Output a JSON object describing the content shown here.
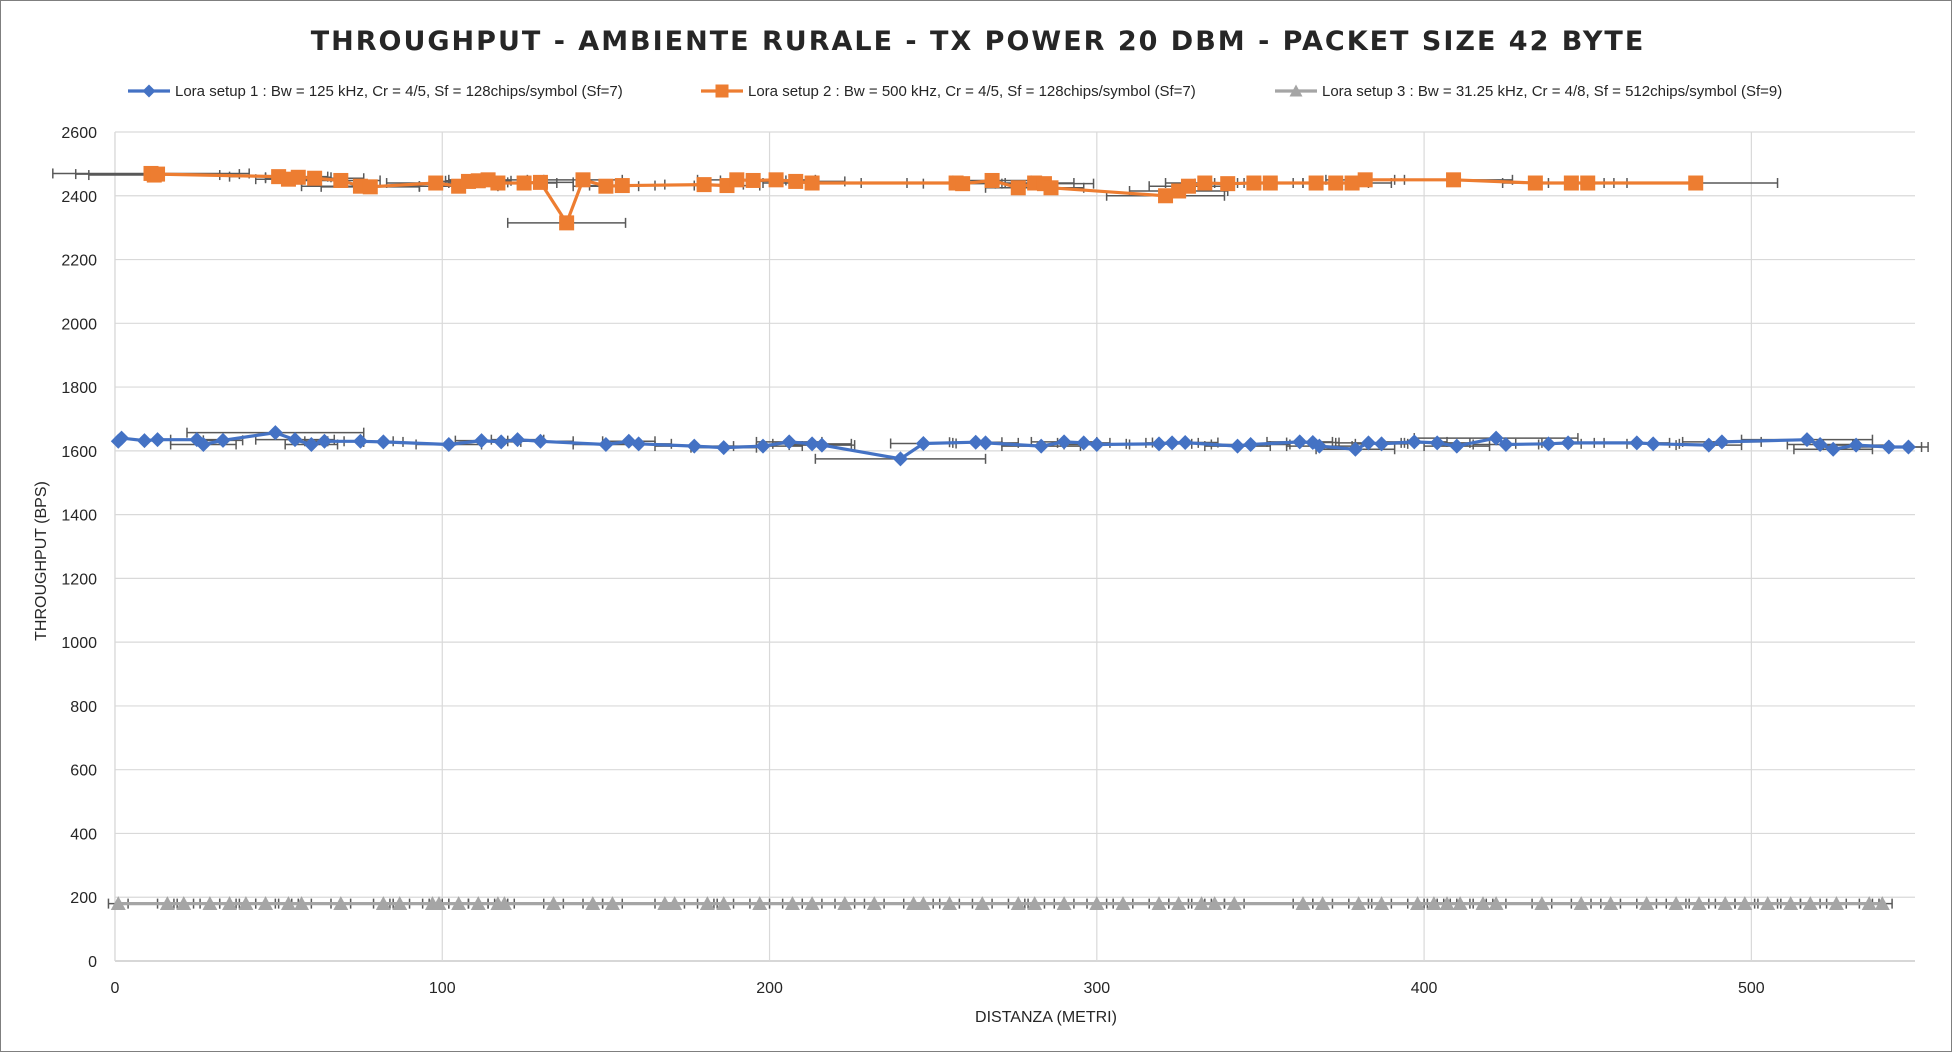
{
  "chart_data": {
    "type": "line",
    "title": "THROUGHPUT  - AMBIENTE  RURALE  - TX  POWER  20  DBM  - PACKET  SIZE  42  BYTE",
    "xlabel": "DISTANZA (METRI)",
    "ylabel": "THROUGHPUT (BPS)",
    "xlim": [
      0,
      550
    ],
    "ylim": [
      0,
      2600
    ],
    "xticks": [
      "0",
      "100",
      "200",
      "300",
      "400",
      "500"
    ],
    "yticks": [
      "0",
      "200",
      "400",
      "600",
      "800",
      "1000",
      "1200",
      "1400",
      "1600",
      "1800",
      "2000",
      "2200",
      "2400",
      "2600"
    ],
    "grid": "vertical-and-horizontal",
    "legend_position": "top",
    "error_bars": "horizontal",
    "series": [
      {
        "name": "Lora setup 1 : Bw = 125 kHz, Cr = 4/5, Sf = 128chips/symbol (Sf=7)",
        "color": "#4472C4",
        "marker": "diamond",
        "points": [
          {
            "x": 1,
            "y": 1630,
            "err": 0
          },
          {
            "x": 2,
            "y": 1640,
            "err": 0
          },
          {
            "x": 9,
            "y": 1632,
            "err": 0
          },
          {
            "x": 13,
            "y": 1635,
            "err": 0
          },
          {
            "x": 25,
            "y": 1635,
            "err": 8
          },
          {
            "x": 27,
            "y": 1620,
            "err": 10
          },
          {
            "x": 33,
            "y": 1633,
            "err": 6
          },
          {
            "x": 49,
            "y": 1657,
            "err": 27
          },
          {
            "x": 55,
            "y": 1635,
            "err": 12
          },
          {
            "x": 60,
            "y": 1620,
            "err": 8
          },
          {
            "x": 64,
            "y": 1630,
            "err": 6
          },
          {
            "x": 75,
            "y": 1630,
            "err": 10
          },
          {
            "x": 82,
            "y": 1628,
            "err": 6
          },
          {
            "x": 102,
            "y": 1620,
            "err": 10
          },
          {
            "x": 112,
            "y": 1632,
            "err": 8
          },
          {
            "x": 118,
            "y": 1628,
            "err": 6
          },
          {
            "x": 123,
            "y": 1635,
            "err": 8
          },
          {
            "x": 130,
            "y": 1630,
            "err": 10
          },
          {
            "x": 150,
            "y": 1620,
            "err": 10
          },
          {
            "x": 157,
            "y": 1630,
            "err": 8
          },
          {
            "x": 160,
            "y": 1622,
            "err": 10
          },
          {
            "x": 177,
            "y": 1615,
            "err": 12
          },
          {
            "x": 186,
            "y": 1610,
            "err": 10
          },
          {
            "x": 198,
            "y": 1615,
            "err": 12
          },
          {
            "x": 206,
            "y": 1628,
            "err": 10
          },
          {
            "x": 213,
            "y": 1622,
            "err": 12
          },
          {
            "x": 216,
            "y": 1618,
            "err": 10
          },
          {
            "x": 240,
            "y": 1575,
            "err": 26
          },
          {
            "x": 247,
            "y": 1623,
            "err": 10
          },
          {
            "x": 263,
            "y": 1627,
            "err": 8
          },
          {
            "x": 266,
            "y": 1625,
            "err": 10
          },
          {
            "x": 283,
            "y": 1615,
            "err": 12
          },
          {
            "x": 290,
            "y": 1628,
            "err": 10
          },
          {
            "x": 296,
            "y": 1625,
            "err": 8
          },
          {
            "x": 300,
            "y": 1620,
            "err": 10
          },
          {
            "x": 319,
            "y": 1622,
            "err": 10
          },
          {
            "x": 323,
            "y": 1625,
            "err": 8
          },
          {
            "x": 327,
            "y": 1626,
            "err": 10
          },
          {
            "x": 343,
            "y": 1615,
            "err": 10
          },
          {
            "x": 347,
            "y": 1620,
            "err": 12
          },
          {
            "x": 362,
            "y": 1628,
            "err": 10
          },
          {
            "x": 366,
            "y": 1626,
            "err": 8
          },
          {
            "x": 368,
            "y": 1615,
            "err": 10
          },
          {
            "x": 379,
            "y": 1605,
            "err": 12
          },
          {
            "x": 383,
            "y": 1625,
            "err": 10
          },
          {
            "x": 387,
            "y": 1622,
            "err": 8
          },
          {
            "x": 397,
            "y": 1628,
            "err": 10
          },
          {
            "x": 404,
            "y": 1625,
            "err": 10
          },
          {
            "x": 410,
            "y": 1615,
            "err": 10
          },
          {
            "x": 422,
            "y": 1640,
            "err": 25
          },
          {
            "x": 425,
            "y": 1620,
            "err": 10
          },
          {
            "x": 438,
            "y": 1622,
            "err": 10
          },
          {
            "x": 444,
            "y": 1625,
            "err": 8
          },
          {
            "x": 465,
            "y": 1625,
            "err": 10
          },
          {
            "x": 470,
            "y": 1622,
            "err": 8
          },
          {
            "x": 487,
            "y": 1618,
            "err": 10
          },
          {
            "x": 491,
            "y": 1628,
            "err": 12
          },
          {
            "x": 517,
            "y": 1635,
            "err": 20
          },
          {
            "x": 521,
            "y": 1620,
            "err": 10
          },
          {
            "x": 525,
            "y": 1605,
            "err": 12
          },
          {
            "x": 532,
            "y": 1618,
            "err": 10
          },
          {
            "x": 542,
            "y": 1612,
            "err": 10
          },
          {
            "x": 548,
            "y": 1612,
            "err": 6
          }
        ]
      },
      {
        "name": "Lora setup 2 : Bw = 500 kHz, Cr = 4/5, Sf = 128chips/symbol (Sf=7)",
        "color": "#ED7D31",
        "marker": "square",
        "points": [
          {
            "x": 11,
            "y": 2470,
            "err": 30
          },
          {
            "x": 12,
            "y": 2465,
            "err": 20
          },
          {
            "x": 13,
            "y": 2468,
            "err": 25
          },
          {
            "x": 50,
            "y": 2460,
            "err": 15
          },
          {
            "x": 53,
            "y": 2452,
            "err": 10
          },
          {
            "x": 56,
            "y": 2458,
            "err": 10
          },
          {
            "x": 61,
            "y": 2455,
            "err": 15
          },
          {
            "x": 69,
            "y": 2448,
            "err": 12
          },
          {
            "x": 75,
            "y": 2430,
            "err": 18
          },
          {
            "x": 78,
            "y": 2428,
            "err": 15
          },
          {
            "x": 98,
            "y": 2440,
            "err": 15
          },
          {
            "x": 105,
            "y": 2430,
            "err": 12
          },
          {
            "x": 108,
            "y": 2445,
            "err": 10
          },
          {
            "x": 111,
            "y": 2447,
            "err": 10
          },
          {
            "x": 114,
            "y": 2450,
            "err": 12
          },
          {
            "x": 117,
            "y": 2440,
            "err": 15
          },
          {
            "x": 125,
            "y": 2440,
            "err": 10
          },
          {
            "x": 130,
            "y": 2442,
            "err": 10
          },
          {
            "x": 138,
            "y": 2315,
            "err": 18
          },
          {
            "x": 143,
            "y": 2450,
            "err": 12
          },
          {
            "x": 150,
            "y": 2430,
            "err": 10
          },
          {
            "x": 155,
            "y": 2432,
            "err": 10
          },
          {
            "x": 180,
            "y": 2435,
            "err": 12
          },
          {
            "x": 187,
            "y": 2432,
            "err": 10
          },
          {
            "x": 190,
            "y": 2450,
            "err": 12
          },
          {
            "x": 195,
            "y": 2448,
            "err": 10
          },
          {
            "x": 202,
            "y": 2450,
            "err": 12
          },
          {
            "x": 208,
            "y": 2445,
            "err": 15
          },
          {
            "x": 213,
            "y": 2440,
            "err": 15
          },
          {
            "x": 257,
            "y": 2440,
            "err": 15
          },
          {
            "x": 259,
            "y": 2438,
            "err": 12
          },
          {
            "x": 268,
            "y": 2448,
            "err": 12
          },
          {
            "x": 276,
            "y": 2425,
            "err": 10
          },
          {
            "x": 281,
            "y": 2440,
            "err": 12
          },
          {
            "x": 284,
            "y": 2438,
            "err": 15
          },
          {
            "x": 286,
            "y": 2425,
            "err": 10
          },
          {
            "x": 321,
            "y": 2400,
            "err": 18
          },
          {
            "x": 325,
            "y": 2415,
            "err": 15
          },
          {
            "x": 328,
            "y": 2430,
            "err": 12
          },
          {
            "x": 333,
            "y": 2440,
            "err": 12
          },
          {
            "x": 340,
            "y": 2438,
            "err": 10
          },
          {
            "x": 348,
            "y": 2440,
            "err": 12
          },
          {
            "x": 353,
            "y": 2440,
            "err": 10
          },
          {
            "x": 367,
            "y": 2440,
            "err": 12
          },
          {
            "x": 373,
            "y": 2440,
            "err": 10
          },
          {
            "x": 378,
            "y": 2440,
            "err": 12
          },
          {
            "x": 382,
            "y": 2450,
            "err": 12
          },
          {
            "x": 409,
            "y": 2450,
            "err": 18
          },
          {
            "x": 434,
            "y": 2440,
            "err": 10
          },
          {
            "x": 445,
            "y": 2440,
            "err": 10
          },
          {
            "x": 450,
            "y": 2440,
            "err": 12
          },
          {
            "x": 483,
            "y": 2440,
            "err": 25
          }
        ]
      },
      {
        "name": "Lora setup 3 : Bw = 31.25 kHz, Cr = 4/8, Sf = 512chips/symbol (Sf=9)",
        "color": "#A5A5A5",
        "marker": "triangle",
        "points": [
          {
            "x": 1,
            "y": 180,
            "err": 3
          },
          {
            "x": 16,
            "y": 180,
            "err": 3
          },
          {
            "x": 21,
            "y": 180,
            "err": 3
          },
          {
            "x": 29,
            "y": 180,
            "err": 3
          },
          {
            "x": 35,
            "y": 180,
            "err": 3
          },
          {
            "x": 40,
            "y": 180,
            "err": 3
          },
          {
            "x": 46,
            "y": 180,
            "err": 3
          },
          {
            "x": 53,
            "y": 180,
            "err": 3
          },
          {
            "x": 57,
            "y": 180,
            "err": 3
          },
          {
            "x": 69,
            "y": 180,
            "err": 3
          },
          {
            "x": 82,
            "y": 180,
            "err": 3
          },
          {
            "x": 87,
            "y": 180,
            "err": 3
          },
          {
            "x": 97,
            "y": 180,
            "err": 3
          },
          {
            "x": 99,
            "y": 180,
            "err": 3
          },
          {
            "x": 105,
            "y": 180,
            "err": 3
          },
          {
            "x": 111,
            "y": 180,
            "err": 3
          },
          {
            "x": 117,
            "y": 180,
            "err": 3
          },
          {
            "x": 119,
            "y": 180,
            "err": 3
          },
          {
            "x": 134,
            "y": 180,
            "err": 3
          },
          {
            "x": 146,
            "y": 180,
            "err": 3
          },
          {
            "x": 152,
            "y": 180,
            "err": 3
          },
          {
            "x": 168,
            "y": 180,
            "err": 3
          },
          {
            "x": 171,
            "y": 180,
            "err": 3
          },
          {
            "x": 181,
            "y": 180,
            "err": 3
          },
          {
            "x": 186,
            "y": 180,
            "err": 3
          },
          {
            "x": 197,
            "y": 180,
            "err": 3
          },
          {
            "x": 207,
            "y": 180,
            "err": 3
          },
          {
            "x": 213,
            "y": 180,
            "err": 3
          },
          {
            "x": 223,
            "y": 180,
            "err": 3
          },
          {
            "x": 232,
            "y": 180,
            "err": 3
          },
          {
            "x": 244,
            "y": 180,
            "err": 3
          },
          {
            "x": 247,
            "y": 180,
            "err": 3
          },
          {
            "x": 255,
            "y": 180,
            "err": 3
          },
          {
            "x": 265,
            "y": 180,
            "err": 3
          },
          {
            "x": 276,
            "y": 180,
            "err": 3
          },
          {
            "x": 281,
            "y": 180,
            "err": 3
          },
          {
            "x": 290,
            "y": 180,
            "err": 3
          },
          {
            "x": 300,
            "y": 180,
            "err": 3
          },
          {
            "x": 308,
            "y": 180,
            "err": 3
          },
          {
            "x": 319,
            "y": 180,
            "err": 3
          },
          {
            "x": 325,
            "y": 180,
            "err": 3
          },
          {
            "x": 332,
            "y": 180,
            "err": 3
          },
          {
            "x": 336,
            "y": 180,
            "err": 3
          },
          {
            "x": 342,
            "y": 180,
            "err": 3
          },
          {
            "x": 363,
            "y": 180,
            "err": 3
          },
          {
            "x": 369,
            "y": 180,
            "err": 3
          },
          {
            "x": 380,
            "y": 180,
            "err": 3
          },
          {
            "x": 387,
            "y": 180,
            "err": 3
          },
          {
            "x": 398,
            "y": 180,
            "err": 3
          },
          {
            "x": 403,
            "y": 180,
            "err": 3
          },
          {
            "x": 407,
            "y": 180,
            "err": 3
          },
          {
            "x": 411,
            "y": 180,
            "err": 3
          },
          {
            "x": 418,
            "y": 180,
            "err": 3
          },
          {
            "x": 422,
            "y": 180,
            "err": 3
          },
          {
            "x": 436,
            "y": 180,
            "err": 3
          },
          {
            "x": 448,
            "y": 180,
            "err": 3
          },
          {
            "x": 457,
            "y": 180,
            "err": 3
          },
          {
            "x": 468,
            "y": 180,
            "err": 3
          },
          {
            "x": 477,
            "y": 180,
            "err": 3
          },
          {
            "x": 484,
            "y": 180,
            "err": 3
          },
          {
            "x": 492,
            "y": 180,
            "err": 3
          },
          {
            "x": 498,
            "y": 180,
            "err": 3
          },
          {
            "x": 505,
            "y": 180,
            "err": 3
          },
          {
            "x": 512,
            "y": 180,
            "err": 3
          },
          {
            "x": 518,
            "y": 180,
            "err": 3
          },
          {
            "x": 526,
            "y": 180,
            "err": 3
          },
          {
            "x": 536,
            "y": 180,
            "err": 3
          },
          {
            "x": 540,
            "y": 180,
            "err": 3
          }
        ]
      }
    ]
  }
}
